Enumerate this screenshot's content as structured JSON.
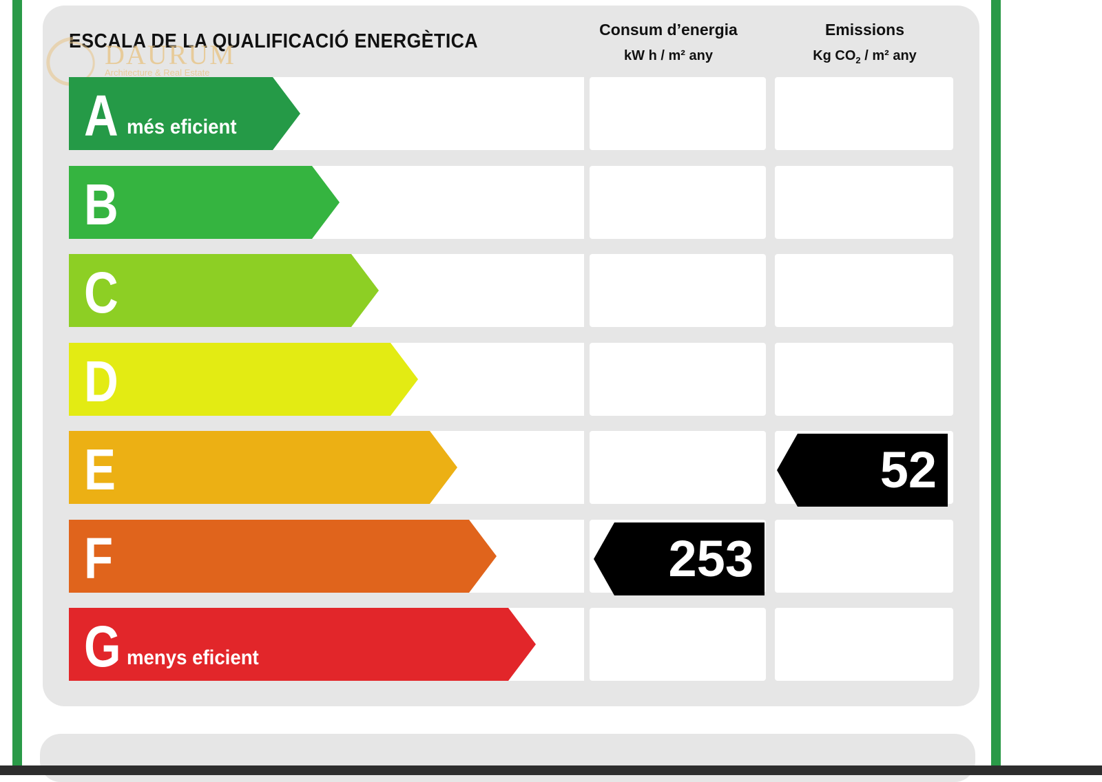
{
  "title": "ESCALA DE LA QUALIFICACIÓ ENERGÈTICA",
  "watermark": {
    "name": "DAURUM",
    "tagline": "Architecture & Real Estate",
    "color": "#e8c588"
  },
  "columns": {
    "consumption": {
      "label": "Consum d’energia",
      "unit": "kW h / m² any"
    },
    "emissions": {
      "label": "Emissions",
      "unit_prefix": "Kg CO",
      "unit_sub": "2",
      "unit_suffix": " / m² any"
    }
  },
  "classes": [
    {
      "letter": "A",
      "sublabel": "més eficient",
      "color": "#259a47"
    },
    {
      "letter": "B",
      "sublabel": "",
      "color": "#35b440"
    },
    {
      "letter": "C",
      "sublabel": "",
      "color": "#8dcf24"
    },
    {
      "letter": "D",
      "sublabel": "",
      "color": "#e3eb13"
    },
    {
      "letter": "E",
      "sublabel": "",
      "color": "#ecb014"
    },
    {
      "letter": "F",
      "sublabel": "",
      "color": "#e0641c"
    },
    {
      "letter": "G",
      "sublabel": "menys eficient",
      "color": "#e2262a"
    }
  ],
  "ratings": {
    "consumption": {
      "value": "253",
      "class": "F"
    },
    "emissions": {
      "value": "52",
      "class": "E"
    }
  }
}
